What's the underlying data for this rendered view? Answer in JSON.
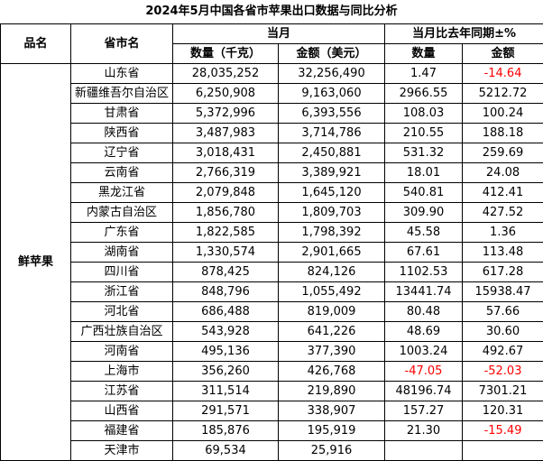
{
  "title": "2024年5月中国各省市苹果出口数据与同比分析",
  "header": {
    "product": "品名",
    "region": "省市名",
    "current_month": "当月",
    "yoy": "当月比去年同期±%",
    "qty": "数量（千克）",
    "amount": "金额（美元）",
    "yoy_qty": "数量",
    "yoy_amount": "金额"
  },
  "product_name": "鲜苹果",
  "colors": {
    "negative": "#ff0000",
    "grid": "#000000"
  },
  "rows": [
    {
      "region": "山东省",
      "qty": "28,035,252",
      "amount": "32,256,490",
      "yoy_qty": "1.47",
      "yoy_amount": "-14.64"
    },
    {
      "region": "新疆维吾尔自治区",
      "qty": "6,250,908",
      "amount": "9,163,060",
      "yoy_qty": "2966.55",
      "yoy_amount": "5212.72"
    },
    {
      "region": "甘肃省",
      "qty": "5,372,996",
      "amount": "6,393,556",
      "yoy_qty": "108.03",
      "yoy_amount": "100.24"
    },
    {
      "region": "陕西省",
      "qty": "3,487,983",
      "amount": "3,714,786",
      "yoy_qty": "210.55",
      "yoy_amount": "188.18"
    },
    {
      "region": "辽宁省",
      "qty": "3,018,431",
      "amount": "2,450,881",
      "yoy_qty": "531.32",
      "yoy_amount": "259.69"
    },
    {
      "region": "云南省",
      "qty": "2,766,319",
      "amount": "3,389,921",
      "yoy_qty": "18.01",
      "yoy_amount": "24.08"
    },
    {
      "region": "黑龙江省",
      "qty": "2,079,848",
      "amount": "1,645,120",
      "yoy_qty": "540.81",
      "yoy_amount": "412.41"
    },
    {
      "region": "内蒙古自治区",
      "qty": "1,856,780",
      "amount": "1,809,703",
      "yoy_qty": "309.90",
      "yoy_amount": "427.52"
    },
    {
      "region": "广东省",
      "qty": "1,822,585",
      "amount": "1,798,392",
      "yoy_qty": "45.58",
      "yoy_amount": "1.36"
    },
    {
      "region": "湖南省",
      "qty": "1,330,574",
      "amount": "2,901,665",
      "yoy_qty": "67.61",
      "yoy_amount": "113.48"
    },
    {
      "region": "四川省",
      "qty": "878,425",
      "amount": "824,126",
      "yoy_qty": "1102.53",
      "yoy_amount": "617.28"
    },
    {
      "region": "浙江省",
      "qty": "848,796",
      "amount": "1,055,492",
      "yoy_qty": "13441.74",
      "yoy_amount": "15938.47"
    },
    {
      "region": "河北省",
      "qty": "686,488",
      "amount": "819,009",
      "yoy_qty": "80.48",
      "yoy_amount": "57.66"
    },
    {
      "region": "广西壮族自治区",
      "qty": "543,928",
      "amount": "641,226",
      "yoy_qty": "48.69",
      "yoy_amount": "30.60"
    },
    {
      "region": "河南省",
      "qty": "495,136",
      "amount": "377,390",
      "yoy_qty": "1003.24",
      "yoy_amount": "492.67"
    },
    {
      "region": "上海市",
      "qty": "356,260",
      "amount": "426,768",
      "yoy_qty": "-47.05",
      "yoy_amount": "-52.03"
    },
    {
      "region": "江苏省",
      "qty": "311,514",
      "amount": "219,890",
      "yoy_qty": "48196.74",
      "yoy_amount": "7301.21"
    },
    {
      "region": "山西省",
      "qty": "291,571",
      "amount": "338,907",
      "yoy_qty": "157.27",
      "yoy_amount": "120.31"
    },
    {
      "region": "福建省",
      "qty": "185,876",
      "amount": "195,919",
      "yoy_qty": "21.30",
      "yoy_amount": "-15.49"
    },
    {
      "region": "天津市",
      "qty": "69,534",
      "amount": "25,916",
      "yoy_qty": "",
      "yoy_amount": ""
    }
  ]
}
